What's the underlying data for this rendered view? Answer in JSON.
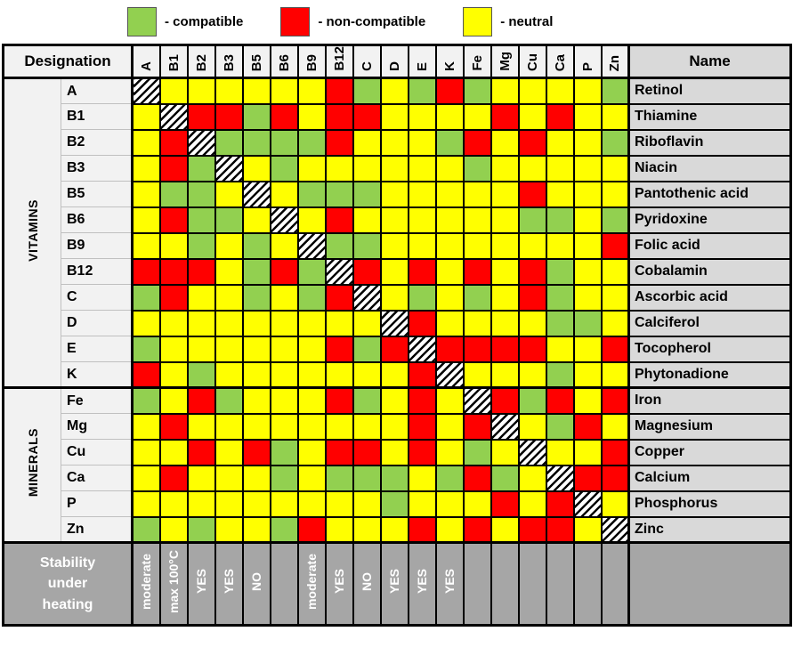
{
  "legend": {
    "items": [
      {
        "key": "compatible",
        "label": "- compatible",
        "color": "#92D050"
      },
      {
        "key": "non-compatible",
        "label": "- non-compatible",
        "color": "#FF0000"
      },
      {
        "key": "neutral",
        "label": "- neutral",
        "color": "#FFFF00"
      }
    ]
  },
  "colors": {
    "compatible": "#92D050",
    "non_compatible": "#FF0000",
    "neutral": "#FFFF00",
    "label_bg": "#F2F2F2",
    "name_bg": "#D9D9D9",
    "footer_bg": "#A6A6A6",
    "border": "#000000"
  },
  "chart_data": {
    "type": "heatmap",
    "title": "Vitamin and mineral compatibility matrix",
    "cell_codes": {
      "G": "compatible",
      "R": "non-compatible",
      "Y": "neutral",
      "X": "self"
    },
    "header": {
      "designation_label": "Designation",
      "name_label": "Name"
    },
    "columns": [
      "A",
      "B1",
      "B2",
      "B3",
      "B5",
      "B6",
      "B9",
      "B12",
      "C",
      "D",
      "E",
      "K",
      "Fe",
      "Mg",
      "Cu",
      "Ca",
      "P",
      "Zn"
    ],
    "groups": [
      {
        "label": "VITAMINS",
        "span": 12
      },
      {
        "label": "MINERALS",
        "span": 6
      }
    ],
    "rows": [
      {
        "designation": "A",
        "name": "Retinol",
        "cells": [
          "X",
          "Y",
          "Y",
          "Y",
          "Y",
          "Y",
          "Y",
          "R",
          "G",
          "Y",
          "G",
          "R",
          "G",
          "Y",
          "Y",
          "Y",
          "Y",
          "G"
        ]
      },
      {
        "designation": "B1",
        "name": "Thiamine",
        "cells": [
          "Y",
          "X",
          "R",
          "R",
          "G",
          "R",
          "Y",
          "R",
          "R",
          "Y",
          "Y",
          "Y",
          "Y",
          "R",
          "Y",
          "R",
          "Y",
          "Y"
        ]
      },
      {
        "designation": "B2",
        "name": "Riboflavin",
        "cells": [
          "Y",
          "R",
          "X",
          "G",
          "G",
          "G",
          "G",
          "R",
          "Y",
          "Y",
          "Y",
          "G",
          "R",
          "Y",
          "R",
          "Y",
          "Y",
          "G"
        ]
      },
      {
        "designation": "B3",
        "name": "Niacin",
        "cells": [
          "Y",
          "R",
          "G",
          "X",
          "Y",
          "G",
          "Y",
          "Y",
          "Y",
          "Y",
          "Y",
          "Y",
          "G",
          "Y",
          "Y",
          "Y",
          "Y",
          "Y"
        ]
      },
      {
        "designation": "B5",
        "name": "Pantothenic acid",
        "cells": [
          "Y",
          "G",
          "G",
          "Y",
          "X",
          "Y",
          "G",
          "G",
          "G",
          "Y",
          "Y",
          "Y",
          "Y",
          "Y",
          "R",
          "Y",
          "Y",
          "Y"
        ]
      },
      {
        "designation": "B6",
        "name": "Pyridoxine",
        "cells": [
          "Y",
          "R",
          "G",
          "G",
          "Y",
          "X",
          "Y",
          "R",
          "Y",
          "Y",
          "Y",
          "Y",
          "Y",
          "Y",
          "G",
          "G",
          "Y",
          "G"
        ]
      },
      {
        "designation": "B9",
        "name": "Folic acid",
        "cells": [
          "Y",
          "Y",
          "G",
          "Y",
          "G",
          "Y",
          "X",
          "G",
          "G",
          "Y",
          "Y",
          "Y",
          "Y",
          "Y",
          "Y",
          "Y",
          "Y",
          "R"
        ]
      },
      {
        "designation": "B12",
        "name": "Cobalamin",
        "cells": [
          "R",
          "R",
          "R",
          "Y",
          "G",
          "R",
          "G",
          "X",
          "R",
          "Y",
          "R",
          "Y",
          "R",
          "Y",
          "R",
          "G",
          "Y",
          "Y"
        ]
      },
      {
        "designation": "C",
        "name": "Ascorbic acid",
        "cells": [
          "G",
          "R",
          "Y",
          "Y",
          "G",
          "Y",
          "G",
          "R",
          "X",
          "Y",
          "G",
          "Y",
          "G",
          "Y",
          "R",
          "G",
          "Y",
          "Y"
        ]
      },
      {
        "designation": "D",
        "name": "Calciferol",
        "cells": [
          "Y",
          "Y",
          "Y",
          "Y",
          "Y",
          "Y",
          "Y",
          "Y",
          "Y",
          "X",
          "R",
          "Y",
          "Y",
          "Y",
          "Y",
          "G",
          "G",
          "Y"
        ]
      },
      {
        "designation": "E",
        "name": "Tocopherol",
        "cells": [
          "G",
          "Y",
          "Y",
          "Y",
          "Y",
          "Y",
          "Y",
          "R",
          "G",
          "R",
          "X",
          "R",
          "R",
          "R",
          "R",
          "Y",
          "Y",
          "R"
        ]
      },
      {
        "designation": "K",
        "name": "Phytonadione",
        "cells": [
          "R",
          "Y",
          "G",
          "Y",
          "Y",
          "Y",
          "Y",
          "Y",
          "Y",
          "Y",
          "R",
          "X",
          "Y",
          "Y",
          "Y",
          "G",
          "Y",
          "Y"
        ]
      },
      {
        "designation": "Fe",
        "name": "Iron",
        "cells": [
          "G",
          "Y",
          "R",
          "G",
          "Y",
          "Y",
          "Y",
          "R",
          "G",
          "Y",
          "R",
          "Y",
          "X",
          "R",
          "G",
          "R",
          "Y",
          "R"
        ]
      },
      {
        "designation": "Mg",
        "name": "Magnesium",
        "cells": [
          "Y",
          "R",
          "Y",
          "Y",
          "Y",
          "Y",
          "Y",
          "Y",
          "Y",
          "Y",
          "R",
          "Y",
          "R",
          "X",
          "Y",
          "G",
          "R",
          "Y"
        ]
      },
      {
        "designation": "Cu",
        "name": "Copper",
        "cells": [
          "Y",
          "Y",
          "R",
          "Y",
          "R",
          "G",
          "Y",
          "R",
          "R",
          "Y",
          "R",
          "Y",
          "G",
          "Y",
          "X",
          "Y",
          "Y",
          "R"
        ]
      },
      {
        "designation": "Ca",
        "name": "Calcium",
        "cells": [
          "Y",
          "R",
          "Y",
          "Y",
          "Y",
          "G",
          "Y",
          "G",
          "G",
          "G",
          "Y",
          "G",
          "R",
          "G",
          "Y",
          "X",
          "R",
          "R"
        ]
      },
      {
        "designation": "P",
        "name": "Phosphorus",
        "cells": [
          "Y",
          "Y",
          "Y",
          "Y",
          "Y",
          "Y",
          "Y",
          "Y",
          "Y",
          "G",
          "Y",
          "Y",
          "Y",
          "R",
          "Y",
          "R",
          "X",
          "Y"
        ]
      },
      {
        "designation": "Zn",
        "name": "Zinc",
        "cells": [
          "G",
          "Y",
          "G",
          "Y",
          "Y",
          "G",
          "R",
          "Y",
          "Y",
          "Y",
          "R",
          "Y",
          "R",
          "Y",
          "R",
          "R",
          "Y",
          "X"
        ]
      }
    ],
    "footer": {
      "label": "Stability under heating",
      "values": [
        "moderate",
        "max 100°C",
        "YES",
        "YES",
        "NO",
        "",
        "moderate",
        "YES",
        "NO",
        "YES",
        "YES",
        "YES",
        "",
        "",
        "",
        "",
        "",
        ""
      ]
    }
  }
}
